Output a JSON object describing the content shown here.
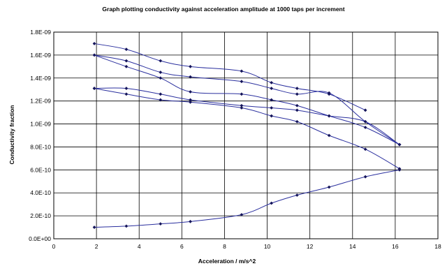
{
  "chart_data": {
    "type": "line",
    "title": "Graph plotting conductivity against acceleration amplitude at 1000 taps per increment",
    "xlabel": "Acceleration / m/s^2",
    "ylabel": "Conductivity fraction",
    "xlim": [
      0,
      18
    ],
    "ylim": [
      0,
      1.8e-09
    ],
    "xticks": [
      0,
      2,
      4,
      6,
      8,
      10,
      12,
      14,
      16,
      18
    ],
    "xtick_labels": [
      "0",
      "2",
      "4",
      "6",
      "8",
      "10",
      "12",
      "14",
      "16",
      "18"
    ],
    "yticks": [
      0,
      2e-10,
      4e-10,
      6e-10,
      8e-10,
      1e-09,
      1.2e-09,
      1.4e-09,
      1.6e-09,
      1.8e-09
    ],
    "ytick_labels": [
      "0.0E+00",
      "2.0E-10",
      "4.0E-10",
      "6.0E-10",
      "8.0E-10",
      "1.0E-09",
      "1.2E-09",
      "1.4E-09",
      "1.6E-09",
      "1.8E-09"
    ],
    "grid": "horizontal and vertical",
    "legend": "none",
    "line_color": "#2a2f9e",
    "marker_color": "#14145a",
    "series": [
      {
        "x": [
          1.9,
          3.4,
          5.0,
          6.4,
          8.8,
          10.2,
          11.4,
          12.9,
          14.6
        ],
        "values": [
          1.7e-09,
          1.65e-09,
          1.55e-09,
          1.5e-09,
          1.46e-09,
          1.36e-09,
          1.31e-09,
          1.26e-09,
          1.12e-09
        ]
      },
      {
        "x": [
          1.9,
          3.4,
          5.0,
          6.4,
          8.8,
          10.2,
          11.4,
          12.9,
          14.6,
          16.2
        ],
        "values": [
          1.6e-09,
          1.55e-09,
          1.45e-09,
          1.41e-09,
          1.37e-09,
          1.31e-09,
          1.26e-09,
          1.27e-09,
          1.02e-09,
          8.2e-10
        ]
      },
      {
        "x": [
          1.9,
          3.4,
          5.0,
          6.4,
          8.8,
          10.2,
          11.4,
          12.9,
          14.6,
          16.2
        ],
        "values": [
          1.6e-09,
          1.5e-09,
          1.4e-09,
          1.28e-09,
          1.26e-09,
          1.21e-09,
          1.16e-09,
          1.07e-09,
          9.7e-10,
          8.2e-10
        ]
      },
      {
        "x": [
          1.9,
          3.4,
          5.0,
          6.4,
          8.8,
          10.2,
          11.4,
          12.9,
          14.6,
          16.2
        ],
        "values": [
          1.31e-09,
          1.31e-09,
          1.26e-09,
          1.21e-09,
          1.16e-09,
          1.14e-09,
          1.12e-09,
          1.07e-09,
          1.02e-09,
          8.2e-10
        ]
      },
      {
        "x": [
          1.9,
          3.4,
          5.0,
          6.4,
          8.8,
          10.2,
          11.4,
          12.9,
          14.6,
          16.2
        ],
        "values": [
          1.31e-09,
          1.26e-09,
          1.21e-09,
          1.19e-09,
          1.14e-09,
          1.07e-09,
          1.02e-09,
          9e-10,
          7.8e-10,
          6.1e-10
        ]
      },
      {
        "x": [
          1.9,
          3.4,
          5.0,
          6.4,
          8.8,
          10.2,
          11.4,
          12.9,
          14.6,
          16.2
        ],
        "values": [
          1e-10,
          1.1e-10,
          1.3e-10,
          1.5e-10,
          2.1e-10,
          3.1e-10,
          3.8e-10,
          4.5e-10,
          5.4e-10,
          6e-10
        ]
      }
    ]
  }
}
